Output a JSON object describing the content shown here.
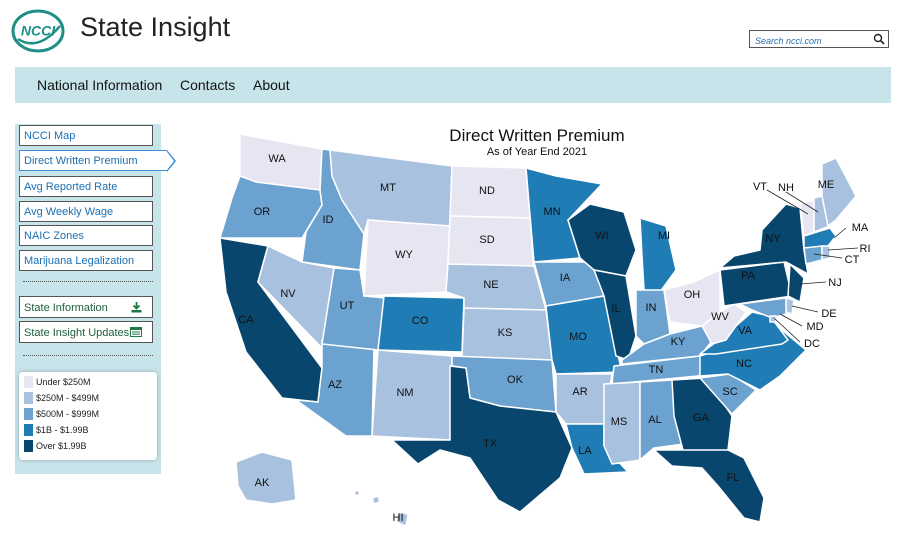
{
  "header": {
    "logo_text": "NCCI",
    "title": "State Insight",
    "search_placeholder": "Search ncci.com"
  },
  "nav": {
    "items": [
      "National Information",
      "Contacts",
      "About"
    ]
  },
  "sidebar": {
    "menu": [
      "NCCI Map",
      "Direct Written Premium",
      "Avg Reported Rate",
      "Avg Weekly Wage",
      "NAIC Zones",
      "Marijuana Legalization"
    ],
    "active_index": 1,
    "actions": [
      {
        "label": "State Information",
        "icon": "download-icon"
      },
      {
        "label": "State Insight Updates",
        "icon": "newsletter-icon"
      }
    ]
  },
  "legend": {
    "items": [
      {
        "label": "Under $250M",
        "color": "#e6e6f3"
      },
      {
        "label": "$250M - $499M",
        "color": "#a8c1df"
      },
      {
        "label": "$500M - $999M",
        "color": "#6ca2cf"
      },
      {
        "label": "$1B - $1.99B",
        "color": "#1f7cb4"
      },
      {
        "label": "Over $1.99B",
        "color": "#08466e"
      }
    ]
  },
  "map": {
    "title": "Direct Written Premium",
    "subtitle": "As of Year End 2021",
    "colors": {
      "c1": "#e6e6f3",
      "c2": "#a8c1df",
      "c3": "#6ca2cf",
      "c4": "#1f7cb4",
      "c5": "#08466e"
    },
    "states": {
      "WA": "c1",
      "OR": "c3",
      "CA": "c5",
      "ID": "c3",
      "NV": "c2",
      "AZ": "c3",
      "MT": "c2",
      "WY": "c1",
      "UT": "c3",
      "CO": "c4",
      "NM": "c2",
      "ND": "c1",
      "SD": "c1",
      "NE": "c2",
      "KS": "c2",
      "OK": "c3",
      "TX": "c5",
      "MN": "c4",
      "IA": "c3",
      "MO": "c4",
      "AR": "c2",
      "LA": "c4",
      "WI": "c5",
      "IL": "c5",
      "MI": "c4",
      "IN": "c3",
      "OH": "c1",
      "KY": "c3",
      "TN": "c3",
      "MS": "c2",
      "AL": "c3",
      "GA": "c5",
      "FL": "c5",
      "SC": "c3",
      "NC": "c4",
      "VA": "c4",
      "WV": "c1",
      "PA": "c5",
      "NY": "c5",
      "VT": "c1",
      "NH": "c2",
      "ME": "c2",
      "MA": "c4",
      "RI": "c2",
      "CT": "c3",
      "NJ": "c5",
      "DE": "c2",
      "MD": "c3",
      "DC": "c2",
      "AK": "c2",
      "HI": "c2"
    },
    "labels": [
      "WA",
      "OR",
      "CA",
      "ID",
      "NV",
      "AZ",
      "MT",
      "WY",
      "UT",
      "CO",
      "NM",
      "ND",
      "SD",
      "NE",
      "KS",
      "OK",
      "TX",
      "MN",
      "IA",
      "MO",
      "AR",
      "LA",
      "WI",
      "IL",
      "MI",
      "IN",
      "OH",
      "KY",
      "TN",
      "MS",
      "AL",
      "GA",
      "FL",
      "SC",
      "NC",
      "VA",
      "WV",
      "PA",
      "NY",
      "VT",
      "NH",
      "ME",
      "MA",
      "RI",
      "CT",
      "NJ",
      "DE",
      "MD",
      "DC",
      "AK",
      "HI"
    ]
  }
}
